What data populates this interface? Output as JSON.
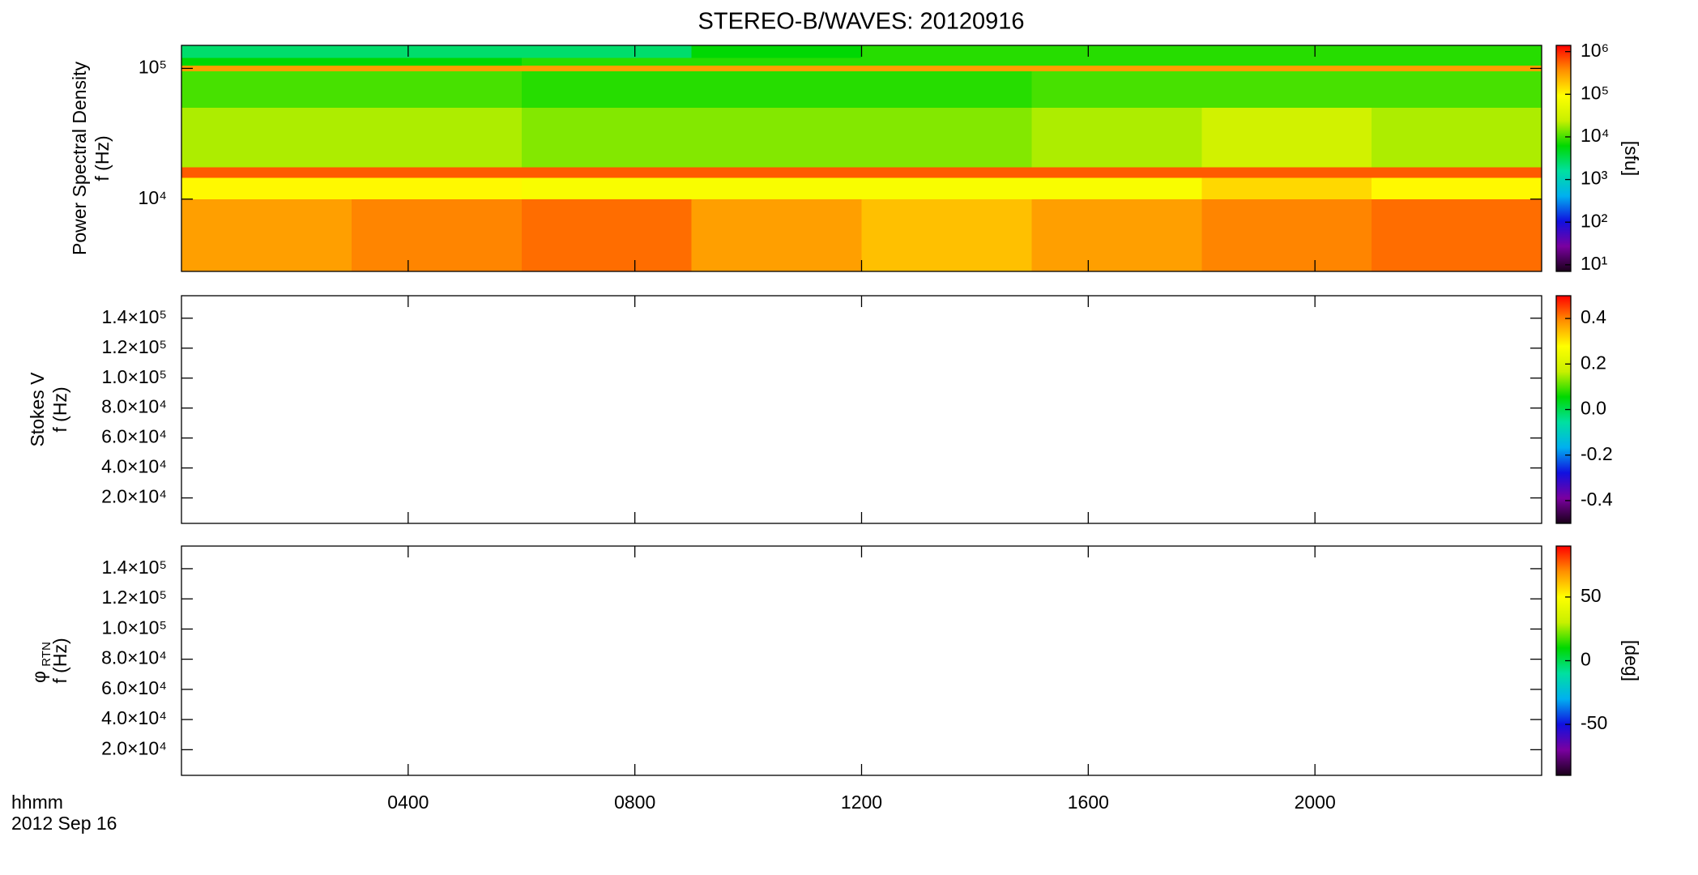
{
  "title": "STEREO-B/WAVES: 20120916",
  "time_axis": {
    "xlabel_lines": [
      "hhmm",
      "2012 Sep 16"
    ],
    "xlim": [
      0,
      24
    ],
    "xticks": [
      {
        "value": 4,
        "label": "0400"
      },
      {
        "value": 8,
        "label": "0800"
      },
      {
        "value": 12,
        "label": "1200"
      },
      {
        "value": 16,
        "label": "1600"
      },
      {
        "value": 20,
        "label": "2000"
      }
    ]
  },
  "colormap": [
    "#1a001a",
    "#7a00a0",
    "#1010e0",
    "#00b0f0",
    "#00e0a0",
    "#00d800",
    "#c8f000",
    "#ffff00",
    "#ff9000",
    "#ff0000"
  ],
  "chart_data": [
    {
      "type": "heatmap",
      "ylabel_lines": [
        "Power Spectral Density",
        "f (Hz)"
      ],
      "ylog": true,
      "ylim": [
        2800,
        150000
      ],
      "yticks": [
        {
          "value": 10000,
          "label": "10⁴"
        },
        {
          "value": 100000,
          "label": "10⁵"
        }
      ],
      "x_edges": [
        0,
        3,
        6,
        9,
        12,
        15,
        18,
        21,
        24
      ],
      "y_edges": [
        2800,
        10000,
        14500,
        17500,
        50000,
        95000,
        105000,
        120000,
        150000
      ],
      "z": [
        [
          300000,
          400000,
          500000,
          300000,
          200000,
          300000,
          400000,
          500000
        ],
        [
          100000,
          100000,
          80000,
          80000,
          80000,
          80000,
          150000,
          100000
        ],
        [
          600000,
          600000,
          600000,
          600000,
          600000,
          600000,
          600000,
          600000
        ],
        [
          20000,
          20000,
          15000,
          15000,
          15000,
          20000,
          30000,
          20000
        ],
        [
          10000,
          10000,
          8000,
          8000,
          8000,
          10000,
          10000,
          10000
        ],
        [
          300000,
          300000,
          300000,
          300000,
          300000,
          300000,
          300000,
          300000
        ],
        [
          6000,
          6000,
          8000,
          8000,
          8000,
          8000,
          8000,
          8000
        ],
        [
          2500,
          2500,
          2500,
          6000,
          8000,
          8000,
          8000,
          8000
        ]
      ],
      "colorbar": {
        "log": true,
        "clim": [
          7,
          1400000
        ],
        "label": "[sfu]",
        "ticks": [
          {
            "value": 10,
            "label": "10¹"
          },
          {
            "value": 100,
            "label": "10²"
          },
          {
            "value": 1000,
            "label": "10³"
          },
          {
            "value": 10000,
            "label": "10⁴"
          },
          {
            "value": 100000,
            "label": "10⁵"
          },
          {
            "value": 1000000,
            "label": "10⁶"
          }
        ]
      }
    },
    {
      "type": "heatmap",
      "ylabel_lines": [
        "Stokes V",
        "f (Hz)"
      ],
      "ylog": false,
      "ylim": [
        3000,
        155000
      ],
      "yticks": [
        {
          "value": 20000,
          "label": "2.0×10⁴"
        },
        {
          "value": 40000,
          "label": "4.0×10⁴"
        },
        {
          "value": 60000,
          "label": "6.0×10⁴"
        },
        {
          "value": 80000,
          "label": "8.0×10⁴"
        },
        {
          "value": 100000,
          "label": "1.0×10⁵"
        },
        {
          "value": 120000,
          "label": "1.2×10⁵"
        },
        {
          "value": 140000,
          "label": "1.4×10⁵"
        }
      ],
      "colorbar": {
        "log": false,
        "clim": [
          -0.5,
          0.5
        ],
        "ticks": [
          -0.4,
          -0.2,
          {
            "value": 0,
            "label": "0.0"
          },
          0.2,
          0.4
        ]
      }
    },
    {
      "type": "heatmap",
      "ylabel_lines": [
        "f (Hz)"
      ],
      "ylabel_symbol": "φ",
      "ylabel_subscript": "RTN",
      "ylog": false,
      "ylim": [
        3000,
        155000
      ],
      "yticks": [
        {
          "value": 20000,
          "label": "2.0×10⁴"
        },
        {
          "value": 40000,
          "label": "4.0×10⁴"
        },
        {
          "value": 60000,
          "label": "6.0×10⁴"
        },
        {
          "value": 80000,
          "label": "8.0×10⁴"
        },
        {
          "value": 100000,
          "label": "1.0×10⁵"
        },
        {
          "value": 120000,
          "label": "1.2×10⁵"
        },
        {
          "value": 140000,
          "label": "1.4×10⁵"
        }
      ],
      "colorbar": {
        "log": false,
        "clim": [
          -90,
          90
        ],
        "label": "[deg]",
        "ticks": [
          -50,
          0,
          50
        ]
      }
    }
  ]
}
